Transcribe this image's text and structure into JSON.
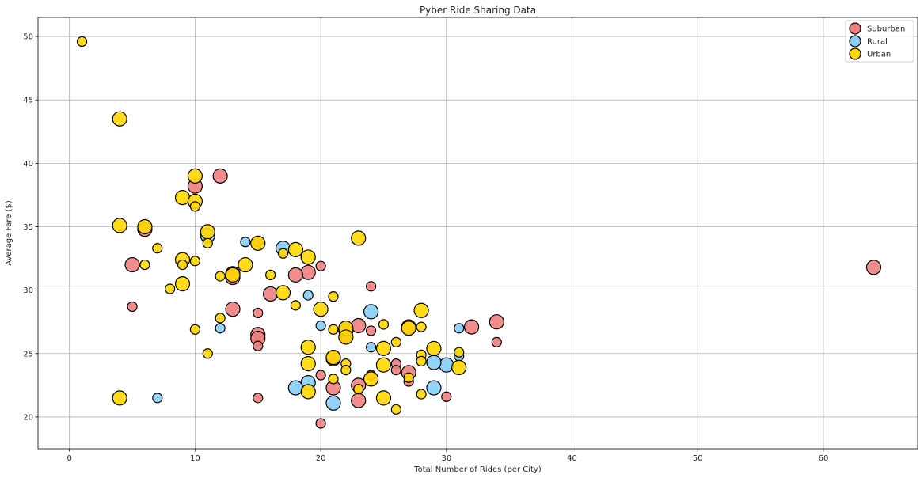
{
  "chart_data": {
    "type": "scatter",
    "title": "Pyber Ride Sharing Data",
    "xlabel": "Total Number of Rides (per City)",
    "ylabel": "Average Fare ($)",
    "xlim": [
      -2.5,
      67.5
    ],
    "ylim": [
      17.5,
      51.5
    ],
    "xticks": [
      0,
      10,
      20,
      30,
      40,
      50,
      60
    ],
    "yticks": [
      20,
      25,
      30,
      35,
      40,
      45,
      50
    ],
    "grid": true,
    "legend_position": "top-right",
    "marker_edge_color": "#000000",
    "series": [
      {
        "name": "Suburban",
        "color": "#f08080",
        "points": [
          [
            64,
            31.8,
            1
          ],
          [
            34,
            27.5,
            1
          ],
          [
            34,
            25.9,
            0
          ],
          [
            32,
            27.1,
            1
          ],
          [
            30,
            21.6,
            0
          ],
          [
            27,
            27.1,
            1
          ],
          [
            27,
            23.5,
            1
          ],
          [
            27,
            22.8,
            0
          ],
          [
            26,
            24.2,
            0
          ],
          [
            26,
            23.7,
            0
          ],
          [
            24,
            30.3,
            0
          ],
          [
            24,
            26.8,
            0
          ],
          [
            24,
            23.3,
            0
          ],
          [
            23,
            27.2,
            1
          ],
          [
            23,
            22.5,
            1
          ],
          [
            23,
            21.3,
            1
          ],
          [
            22,
            26.8,
            1
          ],
          [
            22,
            26.2,
            0
          ],
          [
            21,
            24.6,
            1
          ],
          [
            21,
            22.3,
            1
          ],
          [
            20,
            31.9,
            0
          ],
          [
            20,
            23.3,
            0
          ],
          [
            20,
            19.5,
            0
          ],
          [
            19,
            31.4,
            1
          ],
          [
            18,
            31.2,
            1
          ],
          [
            16,
            29.7,
            1
          ],
          [
            15,
            33.8,
            0
          ],
          [
            15,
            28.2,
            0
          ],
          [
            15,
            26.5,
            1
          ],
          [
            15,
            26.2,
            1
          ],
          [
            15,
            25.6,
            0
          ],
          [
            15,
            21.5,
            0
          ],
          [
            13,
            31.3,
            1
          ],
          [
            13,
            31.0,
            1
          ],
          [
            13,
            28.5,
            1
          ],
          [
            12,
            39.0,
            1
          ],
          [
            10,
            38.2,
            1
          ],
          [
            6,
            34.8,
            1
          ],
          [
            5,
            32.0,
            1
          ],
          [
            5,
            28.7,
            0
          ]
        ]
      },
      {
        "name": "Rural",
        "color": "#87cefa",
        "points": [
          [
            31,
            27.0,
            0
          ],
          [
            31,
            24.8,
            0
          ],
          [
            30,
            24.1,
            1
          ],
          [
            29,
            24.3,
            1
          ],
          [
            29,
            22.3,
            1
          ],
          [
            24,
            28.3,
            1
          ],
          [
            24,
            25.5,
            0
          ],
          [
            21,
            21.1,
            1
          ],
          [
            20,
            27.2,
            0
          ],
          [
            19,
            29.6,
            0
          ],
          [
            19,
            22.7,
            1
          ],
          [
            18,
            22.3,
            1
          ],
          [
            17,
            33.3,
            1
          ],
          [
            14,
            33.8,
            0
          ],
          [
            12,
            27.0,
            0
          ],
          [
            11,
            34.3,
            1
          ],
          [
            7,
            21.5,
            0
          ]
        ]
      },
      {
        "name": "Urban",
        "color": "#ffd700",
        "points": [
          [
            1,
            49.6,
            0
          ],
          [
            4,
            43.5,
            1
          ],
          [
            4,
            35.1,
            1
          ],
          [
            4,
            21.5,
            1
          ],
          [
            6,
            35.0,
            1
          ],
          [
            6,
            32.0,
            0
          ],
          [
            7,
            33.3,
            0
          ],
          [
            8,
            30.1,
            0
          ],
          [
            9,
            37.3,
            1
          ],
          [
            9,
            32.4,
            1
          ],
          [
            9,
            32.0,
            0
          ],
          [
            9,
            30.5,
            1
          ],
          [
            10,
            39.0,
            1
          ],
          [
            10,
            37.0,
            1
          ],
          [
            10,
            36.6,
            0
          ],
          [
            10,
            32.3,
            0
          ],
          [
            10,
            26.9,
            0
          ],
          [
            11,
            34.6,
            1
          ],
          [
            11,
            33.7,
            0
          ],
          [
            11,
            25.0,
            0
          ],
          [
            12,
            31.1,
            0
          ],
          [
            12,
            27.8,
            0
          ],
          [
            13,
            31.2,
            1
          ],
          [
            14,
            32.0,
            1
          ],
          [
            15,
            33.7,
            1
          ],
          [
            16,
            31.2,
            0
          ],
          [
            17,
            32.9,
            0
          ],
          [
            17,
            29.8,
            1
          ],
          [
            18,
            33.2,
            1
          ],
          [
            18,
            28.8,
            0
          ],
          [
            19,
            32.6,
            1
          ],
          [
            19,
            25.5,
            1
          ],
          [
            19,
            24.2,
            1
          ],
          [
            19,
            22.0,
            1
          ],
          [
            20,
            28.5,
            1
          ],
          [
            21,
            29.5,
            0
          ],
          [
            21,
            26.9,
            0
          ],
          [
            21,
            24.7,
            1
          ],
          [
            21,
            23.0,
            0
          ],
          [
            22,
            27.0,
            1
          ],
          [
            22,
            26.3,
            1
          ],
          [
            22,
            24.2,
            0
          ],
          [
            22,
            23.7,
            0
          ],
          [
            23,
            34.1,
            1
          ],
          [
            23,
            22.2,
            0
          ],
          [
            24,
            23.0,
            1
          ],
          [
            25,
            27.3,
            0
          ],
          [
            25,
            25.4,
            1
          ],
          [
            25,
            24.1,
            1
          ],
          [
            25,
            21.5,
            1
          ],
          [
            26,
            25.9,
            0
          ],
          [
            26,
            20.6,
            0
          ],
          [
            27,
            27.0,
            1
          ],
          [
            27,
            23.1,
            0
          ],
          [
            28,
            28.4,
            1
          ],
          [
            28,
            27.1,
            0
          ],
          [
            28,
            24.9,
            0
          ],
          [
            28,
            24.4,
            0
          ],
          [
            28,
            21.8,
            0
          ],
          [
            29,
            25.4,
            1
          ],
          [
            31,
            25.1,
            0
          ],
          [
            31,
            23.9,
            1
          ]
        ]
      }
    ]
  }
}
